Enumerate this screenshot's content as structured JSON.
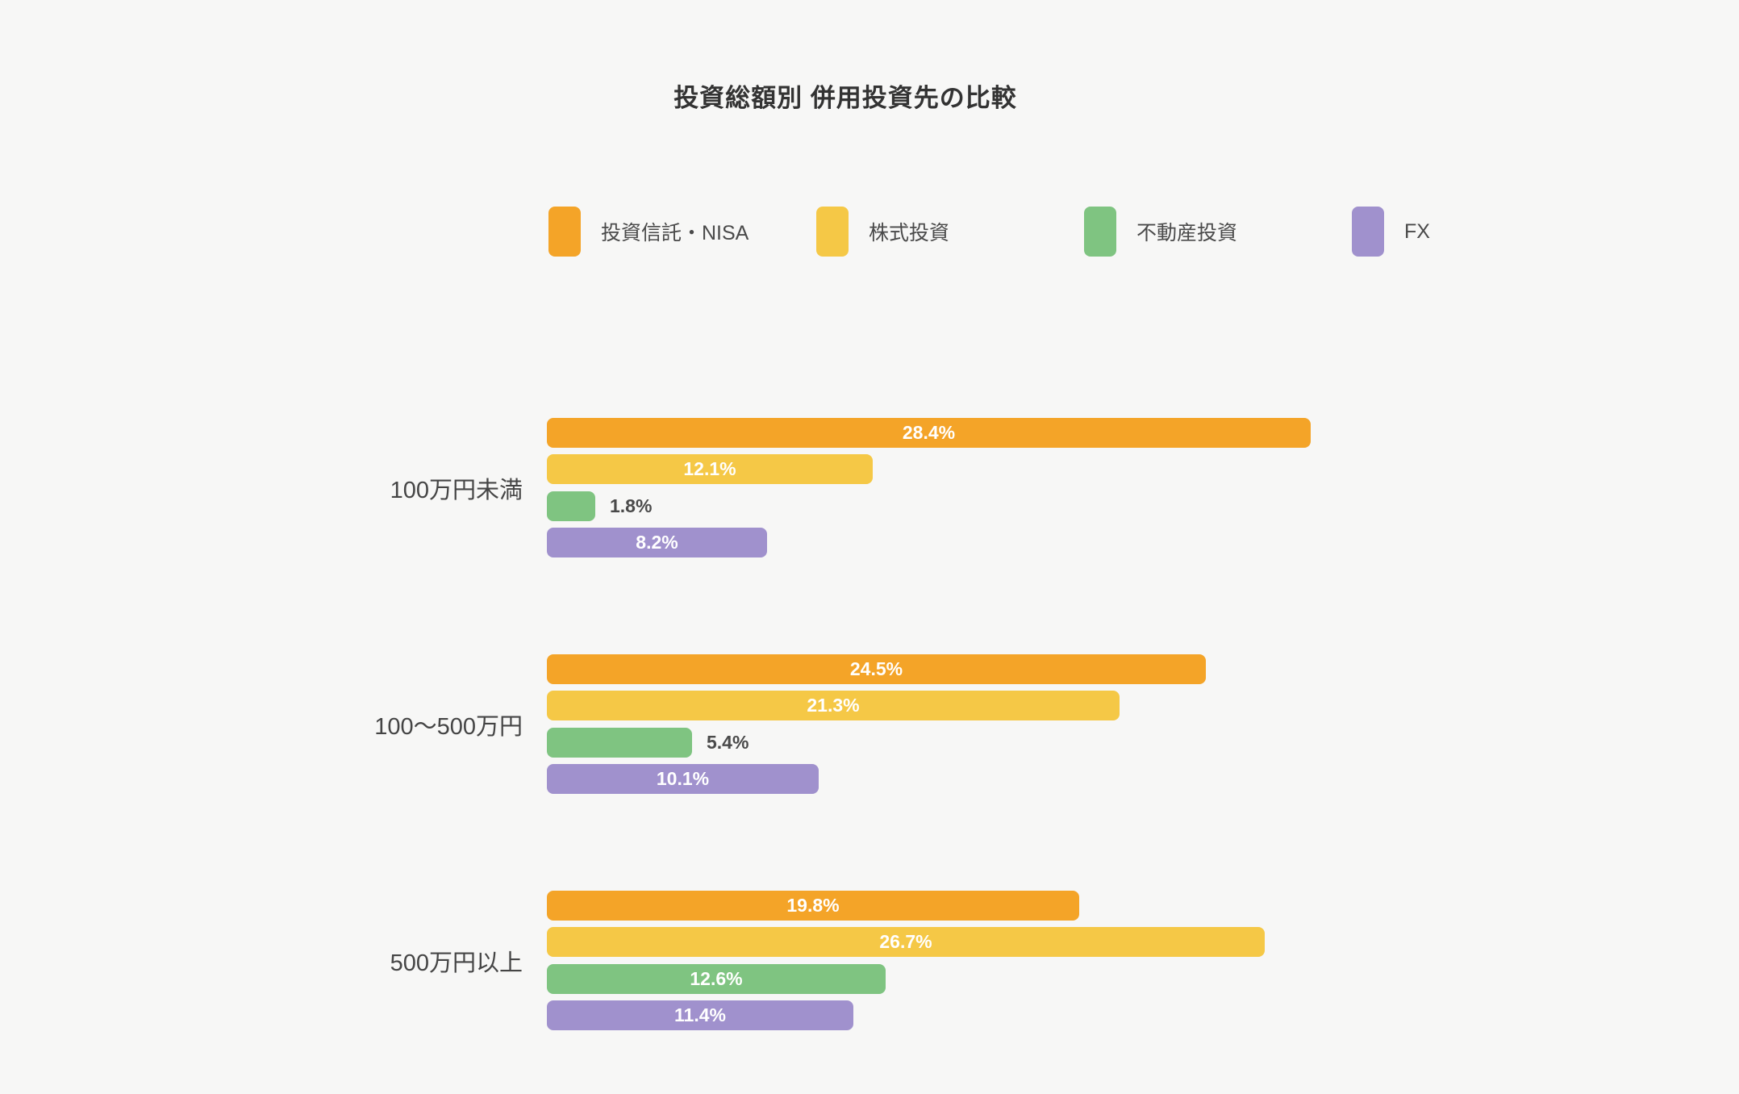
{
  "page": {
    "background_color": "#f7f7f6"
  },
  "chart_data": {
    "type": "bar",
    "orientation": "horizontal",
    "title": "投資総額別 併用投資先の比較",
    "categories": [
      "100万円未満",
      "100〜500万円",
      "500万円以上"
    ],
    "series": [
      {
        "name": "投資信託・NISA",
        "color": "#F4A428",
        "values": [
          28.4,
          24.5,
          19.8
        ]
      },
      {
        "name": "株式投資",
        "color": "#F5C846",
        "values": [
          12.1,
          21.3,
          26.7
        ]
      },
      {
        "name": "不動産投資",
        "color": "#7FC481",
        "values": [
          1.8,
          5.4,
          12.6
        ]
      },
      {
        "name": "FX",
        "color": "#A091CD",
        "values": [
          8.2,
          10.1,
          11.4
        ]
      }
    ],
    "value_suffix": "%",
    "value_label_color_inside": "#ffffff",
    "value_label_color_outside": "#4a4a4a",
    "grid": false,
    "legend_position": "top",
    "axis_ticks_visible": false
  }
}
